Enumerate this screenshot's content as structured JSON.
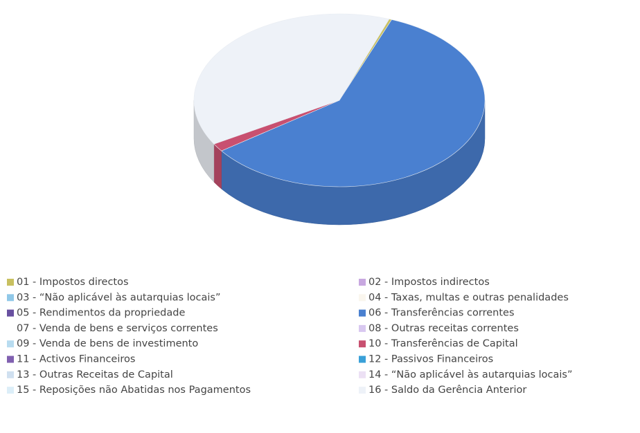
{
  "chart_data": {
    "type": "pie",
    "start_angle": 20,
    "categories": [
      "01 - Impostos directos",
      "02 - Impostos indirectos",
      "03 - “Não aplicável às autarquias locais”",
      "04 - Taxas, multas e outras penalidades",
      "05 - Rendimentos da propriedade",
      "06 - Transferências correntes",
      "07 - Venda de bens e serviços correntes",
      "08 - Outras receitas correntes",
      "09 - Venda de bens de investimento",
      "10 - Transferências de Capital",
      "11 - Activos Financeiros",
      "12 - Passivos Financeiros",
      "13 - Outras Receitas de Capital",
      "14 - “Não aplicável às autarquias locais”",
      "15 - Reposições não Abatidas nos Pagamentos",
      "16 - Saldo da Gerência Anterior"
    ],
    "values": [
      0.3,
      0,
      0,
      0,
      0,
      59.2,
      0,
      0,
      0,
      1.5,
      0,
      0,
      0,
      0,
      0,
      39
    ],
    "colors": [
      "#c8c060",
      "#c8a8e0",
      "#90c8e8",
      "#faf6ee",
      "#6850a0",
      "#4a80d0",
      "#ffffff",
      "#d8c8f0",
      "#b8dcf0",
      "#c85070",
      "#8060b0",
      "#3aa0d8",
      "#d0e0f0",
      "#ece0f4",
      "#dceef8",
      "#eef2f8"
    ]
  }
}
